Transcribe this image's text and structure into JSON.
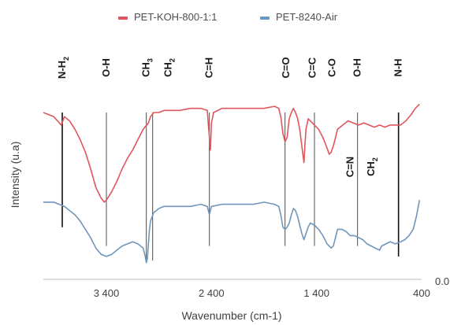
{
  "chart_data": {
    "type": "line",
    "title": "",
    "xlabel": "Wavenumber (cm-1)",
    "ylabel": "Intensity (u.a)",
    "xlim": [
      4000,
      400
    ],
    "x_ticks": [
      "3 400",
      "2 400",
      "1 400",
      "400"
    ],
    "x_tick_values": [
      3400,
      2400,
      1400,
      400
    ],
    "y_tick_label": "0.0",
    "ylim": [
      0,
      100
    ],
    "grid": false,
    "legend_position": "top",
    "series": [
      {
        "name": "PET-KOH-800-1:1",
        "color": "#e0565c",
        "points": [
          [
            4000,
            80
          ],
          [
            3900,
            78
          ],
          [
            3830,
            74
          ],
          [
            3800,
            78
          ],
          [
            3750,
            76
          ],
          [
            3700,
            72
          ],
          [
            3650,
            67
          ],
          [
            3600,
            61
          ],
          [
            3550,
            53
          ],
          [
            3500,
            44
          ],
          [
            3450,
            39
          ],
          [
            3420,
            37
          ],
          [
            3400,
            38
          ],
          [
            3350,
            42
          ],
          [
            3300,
            47
          ],
          [
            3250,
            53
          ],
          [
            3200,
            58
          ],
          [
            3150,
            62
          ],
          [
            3100,
            67
          ],
          [
            3050,
            72
          ],
          [
            3000,
            75
          ],
          [
            2980,
            78
          ],
          [
            2950,
            80
          ],
          [
            2900,
            80
          ],
          [
            2850,
            81
          ],
          [
            2800,
            81
          ],
          [
            2700,
            81
          ],
          [
            2600,
            82
          ],
          [
            2500,
            82
          ],
          [
            2440,
            81
          ],
          [
            2420,
            68
          ],
          [
            2410,
            62
          ],
          [
            2400,
            75
          ],
          [
            2380,
            80
          ],
          [
            2300,
            82
          ],
          [
            2200,
            82
          ],
          [
            2100,
            82
          ],
          [
            2000,
            82
          ],
          [
            1900,
            82
          ],
          [
            1800,
            83
          ],
          [
            1760,
            82
          ],
          [
            1740,
            78
          ],
          [
            1720,
            70
          ],
          [
            1700,
            66
          ],
          [
            1680,
            68
          ],
          [
            1660,
            77
          ],
          [
            1640,
            80
          ],
          [
            1620,
            82
          ],
          [
            1600,
            80
          ],
          [
            1580,
            77
          ],
          [
            1560,
            72
          ],
          [
            1540,
            64
          ],
          [
            1530,
            60
          ],
          [
            1520,
            56
          ],
          [
            1510,
            65
          ],
          [
            1500,
            72
          ],
          [
            1480,
            77
          ],
          [
            1460,
            76
          ],
          [
            1420,
            74
          ],
          [
            1380,
            72
          ],
          [
            1340,
            68
          ],
          [
            1300,
            63
          ],
          [
            1280,
            60
          ],
          [
            1260,
            61
          ],
          [
            1240,
            64
          ],
          [
            1220,
            68
          ],
          [
            1200,
            72
          ],
          [
            1150,
            74
          ],
          [
            1100,
            76
          ],
          [
            1050,
            75
          ],
          [
            1000,
            74
          ],
          [
            950,
            75
          ],
          [
            900,
            74
          ],
          [
            850,
            73
          ],
          [
            800,
            74
          ],
          [
            750,
            73
          ],
          [
            700,
            74
          ],
          [
            650,
            74
          ],
          [
            600,
            74
          ],
          [
            550,
            76
          ],
          [
            500,
            79
          ],
          [
            460,
            82
          ],
          [
            420,
            84
          ]
        ]
      },
      {
        "name": "PET-8240-Air",
        "color": "#6f96bb",
        "points": [
          [
            4000,
            37
          ],
          [
            3950,
            37
          ],
          [
            3900,
            37
          ],
          [
            3850,
            36
          ],
          [
            3800,
            35
          ],
          [
            3750,
            33
          ],
          [
            3700,
            31
          ],
          [
            3650,
            28
          ],
          [
            3600,
            24
          ],
          [
            3550,
            20
          ],
          [
            3500,
            15
          ],
          [
            3450,
            12
          ],
          [
            3400,
            11
          ],
          [
            3350,
            12
          ],
          [
            3300,
            14
          ],
          [
            3250,
            16
          ],
          [
            3200,
            17
          ],
          [
            3150,
            18
          ],
          [
            3100,
            17
          ],
          [
            3050,
            15
          ],
          [
            3030,
            11
          ],
          [
            3020,
            8
          ],
          [
            3010,
            10
          ],
          [
            3000,
            17
          ],
          [
            2990,
            24
          ],
          [
            2980,
            28
          ],
          [
            2950,
            32
          ],
          [
            2900,
            34
          ],
          [
            2850,
            35
          ],
          [
            2800,
            35
          ],
          [
            2700,
            35
          ],
          [
            2600,
            35
          ],
          [
            2500,
            36
          ],
          [
            2440,
            35
          ],
          [
            2420,
            31
          ],
          [
            2410,
            33
          ],
          [
            2400,
            35
          ],
          [
            2300,
            36
          ],
          [
            2200,
            36
          ],
          [
            2100,
            36
          ],
          [
            2000,
            36
          ],
          [
            1900,
            37
          ],
          [
            1800,
            36
          ],
          [
            1760,
            35
          ],
          [
            1740,
            31
          ],
          [
            1720,
            25
          ],
          [
            1700,
            24
          ],
          [
            1680,
            25
          ],
          [
            1660,
            27
          ],
          [
            1640,
            31
          ],
          [
            1620,
            34
          ],
          [
            1600,
            33
          ],
          [
            1580,
            30
          ],
          [
            1560,
            26
          ],
          [
            1540,
            22
          ],
          [
            1520,
            19
          ],
          [
            1500,
            22
          ],
          [
            1480,
            25
          ],
          [
            1460,
            27
          ],
          [
            1420,
            26
          ],
          [
            1380,
            24
          ],
          [
            1340,
            21
          ],
          [
            1300,
            17
          ],
          [
            1280,
            16
          ],
          [
            1260,
            15
          ],
          [
            1240,
            16
          ],
          [
            1220,
            20
          ],
          [
            1200,
            24
          ],
          [
            1160,
            24
          ],
          [
            1120,
            23
          ],
          [
            1080,
            21
          ],
          [
            1040,
            21
          ],
          [
            1000,
            20
          ],
          [
            960,
            19
          ],
          [
            920,
            17
          ],
          [
            880,
            16
          ],
          [
            840,
            15
          ],
          [
            800,
            14
          ],
          [
            780,
            16
          ],
          [
            740,
            17
          ],
          [
            700,
            18
          ],
          [
            650,
            17
          ],
          [
            600,
            18
          ],
          [
            560,
            19
          ],
          [
            520,
            21
          ],
          [
            480,
            24
          ],
          [
            450,
            30
          ],
          [
            420,
            38
          ]
        ]
      }
    ],
    "band_lines": [
      {
        "x": 3820,
        "top": 80,
        "bottom": 25,
        "dark": true
      },
      {
        "x": 3400,
        "top": 80,
        "bottom": 16,
        "dark": false
      },
      {
        "x": 3020,
        "top": 80,
        "bottom": 8,
        "dark": false
      },
      {
        "x": 2960,
        "top": 80,
        "bottom": 9,
        "dark": false
      },
      {
        "x": 2420,
        "top": 80,
        "bottom": 16,
        "dark": false
      },
      {
        "x": 1700,
        "top": 80,
        "bottom": 16,
        "dark": false
      },
      {
        "x": 1420,
        "top": 80,
        "bottom": 16,
        "dark": false
      },
      {
        "x": 1010,
        "top": 80,
        "bottom": 16,
        "dark": false
      },
      {
        "x": 620,
        "top": 80,
        "bottom": 11,
        "dark": true
      }
    ],
    "band_labels": [
      {
        "text": "N-H",
        "sub": "2",
        "x": 3820,
        "pos": "top"
      },
      {
        "text": "O-H",
        "sub": "",
        "x": 3400,
        "pos": "top"
      },
      {
        "text": "CH",
        "sub": "3",
        "x": 3020,
        "pos": "top"
      },
      {
        "text": "CH",
        "sub": "2",
        "x": 2810,
        "pos": "top"
      },
      {
        "text": "C=H",
        "sub": "",
        "x": 2420,
        "pos": "top"
      },
      {
        "text": "C=O",
        "sub": "",
        "x": 1690,
        "pos": "top"
      },
      {
        "text": "C=C",
        "sub": "",
        "x": 1440,
        "pos": "top"
      },
      {
        "text": "C-O",
        "sub": "",
        "x": 1250,
        "pos": "top"
      },
      {
        "text": "O-H",
        "sub": "",
        "x": 1010,
        "pos": "top"
      },
      {
        "text": "N-H",
        "sub": "",
        "x": 620,
        "pos": "top"
      },
      {
        "text": "C=N",
        "sub": "",
        "x": 1080,
        "pos": "mid"
      },
      {
        "text": "CH",
        "sub": "2",
        "x": 880,
        "pos": "mid"
      }
    ]
  }
}
